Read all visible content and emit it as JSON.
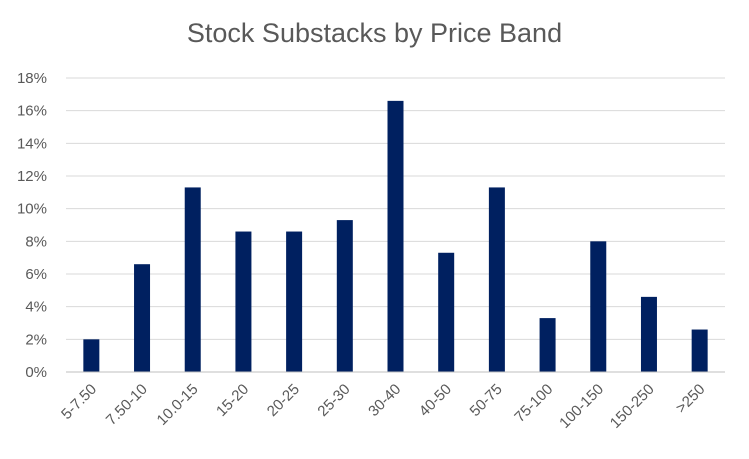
{
  "chart_data": {
    "type": "bar",
    "title": "Stock Substacks by Price Band",
    "xlabel": "",
    "ylabel": "",
    "categories": [
      "5-7.50",
      "7.50-10",
      "10.0-15",
      "15-20",
      "20-25",
      "25-30",
      "30-40",
      "40-50",
      "50-75",
      "75-100",
      "100-150",
      "150-250",
      ">250"
    ],
    "values": [
      2.0,
      6.6,
      11.3,
      8.6,
      8.6,
      9.3,
      16.6,
      7.3,
      11.3,
      3.3,
      8.0,
      4.6,
      2.6
    ],
    "ylim": [
      0,
      18
    ],
    "yticks": [
      0,
      2,
      4,
      6,
      8,
      10,
      12,
      14,
      16,
      18
    ],
    "ytick_labels": [
      "0%",
      "2%",
      "4%",
      "6%",
      "8%",
      "10%",
      "12%",
      "14%",
      "16%",
      "18%"
    ],
    "grid": true,
    "legend": "none",
    "bar_color": "#002060"
  }
}
